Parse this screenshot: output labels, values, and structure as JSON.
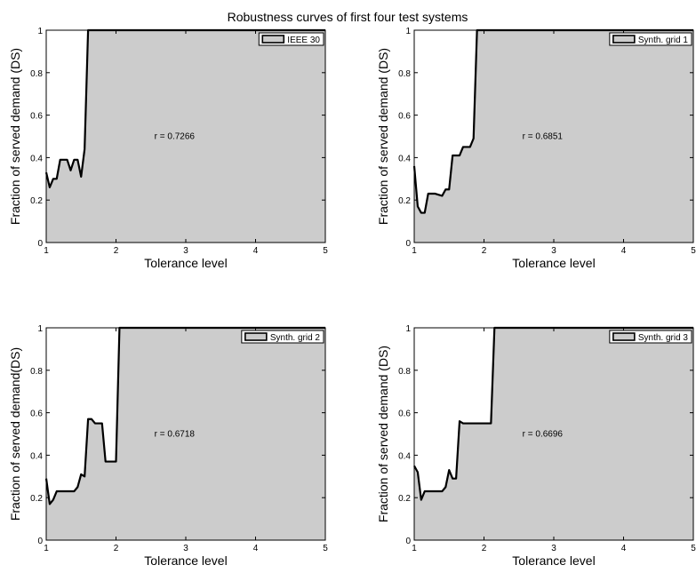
{
  "figure": {
    "title": "Robustness curves of first four test systems"
  },
  "chart_data": [
    {
      "type": "area",
      "legend": "IEEE 30",
      "legend_position": "top-right",
      "annotation": "r = 0.7266",
      "xlabel": "Tolerance level",
      "ylabel": "Fraction of served demand (DS)",
      "xlim": [
        1,
        5
      ],
      "ylim": [
        0,
        1
      ],
      "xticks": [
        "1",
        "2",
        "3",
        "4",
        "5"
      ],
      "yticks": [
        "0",
        "0.2",
        "0.4",
        "0.6",
        "0.8",
        "1"
      ],
      "fill_color": "#cccccc",
      "line_color": "#000000",
      "x": [
        1.0,
        1.05,
        1.1,
        1.15,
        1.2,
        1.25,
        1.3,
        1.35,
        1.4,
        1.45,
        1.5,
        1.55,
        1.6,
        1.63,
        1.65,
        1.9,
        2.0,
        2.5,
        3.0,
        4.0,
        5.0
      ],
      "y": [
        0.33,
        0.26,
        0.3,
        0.3,
        0.39,
        0.39,
        0.39,
        0.34,
        0.39,
        0.39,
        0.31,
        0.44,
        1.0,
        1.0,
        1.0,
        1.0,
        1.0,
        1.0,
        1.0,
        1.0,
        1.0
      ]
    },
    {
      "type": "area",
      "legend": "Synth. grid 1",
      "legend_position": "top-right",
      "annotation": "r = 0.6851",
      "xlabel": "Tolerance level",
      "ylabel": "Fraction of served demand (DS)",
      "xlim": [
        1,
        5
      ],
      "ylim": [
        0,
        1
      ],
      "xticks": [
        "1",
        "2",
        "3",
        "4",
        "5"
      ],
      "yticks": [
        "0",
        "0.2",
        "0.4",
        "0.6",
        "0.8",
        "1"
      ],
      "fill_color": "#cccccc",
      "line_color": "#000000",
      "x": [
        1.0,
        1.05,
        1.1,
        1.15,
        1.2,
        1.3,
        1.4,
        1.45,
        1.5,
        1.55,
        1.6,
        1.65,
        1.7,
        1.75,
        1.8,
        1.85,
        1.9,
        2.0,
        3.0,
        4.0,
        5.0
      ],
      "y": [
        0.36,
        0.17,
        0.14,
        0.14,
        0.23,
        0.23,
        0.22,
        0.25,
        0.25,
        0.41,
        0.41,
        0.41,
        0.45,
        0.45,
        0.45,
        0.49,
        1.0,
        1.0,
        1.0,
        1.0,
        1.0
      ]
    },
    {
      "type": "area",
      "legend": "Synth. grid 2",
      "legend_position": "top-right",
      "annotation": "r = 0.6718",
      "xlabel": "Tolerance level",
      "ylabel": "Fraction of served demand(DS)",
      "xlim": [
        1,
        5
      ],
      "ylim": [
        0,
        1
      ],
      "xticks": [
        "1",
        "2",
        "3",
        "4",
        "5"
      ],
      "yticks": [
        "0",
        "0.2",
        "0.4",
        "0.6",
        "0.8",
        "1"
      ],
      "fill_color": "#cccccc",
      "line_color": "#000000",
      "x": [
        1.0,
        1.05,
        1.1,
        1.15,
        1.2,
        1.3,
        1.4,
        1.45,
        1.5,
        1.55,
        1.6,
        1.65,
        1.7,
        1.75,
        1.8,
        1.85,
        1.9,
        1.95,
        2.0,
        2.05,
        3.0,
        4.0,
        5.0
      ],
      "y": [
        0.29,
        0.17,
        0.19,
        0.23,
        0.23,
        0.23,
        0.23,
        0.25,
        0.31,
        0.3,
        0.57,
        0.57,
        0.55,
        0.55,
        0.55,
        0.37,
        0.37,
        0.37,
        0.37,
        1.0,
        1.0,
        1.0,
        1.0
      ]
    },
    {
      "type": "area",
      "legend": "Synth. grid 3",
      "legend_position": "top-right",
      "annotation": "r = 0.6696",
      "xlabel": "Tolerance level",
      "ylabel": "Fraction of served demand (DS)",
      "xlim": [
        1,
        5
      ],
      "ylim": [
        0,
        1
      ],
      "xticks": [
        "1",
        "2",
        "3",
        "4",
        "5"
      ],
      "yticks": [
        "0",
        "0.2",
        "0.4",
        "0.6",
        "0.8",
        "1"
      ],
      "fill_color": "#cccccc",
      "line_color": "#000000",
      "x": [
        1.0,
        1.05,
        1.1,
        1.15,
        1.2,
        1.3,
        1.4,
        1.45,
        1.5,
        1.55,
        1.6,
        1.65,
        1.7,
        1.8,
        1.9,
        2.0,
        2.1,
        2.15,
        3.0,
        4.0,
        5.0
      ],
      "y": [
        0.35,
        0.32,
        0.19,
        0.23,
        0.23,
        0.23,
        0.23,
        0.25,
        0.33,
        0.29,
        0.29,
        0.56,
        0.55,
        0.55,
        0.55,
        0.55,
        0.55,
        1.0,
        1.0,
        1.0,
        1.0
      ]
    }
  ]
}
